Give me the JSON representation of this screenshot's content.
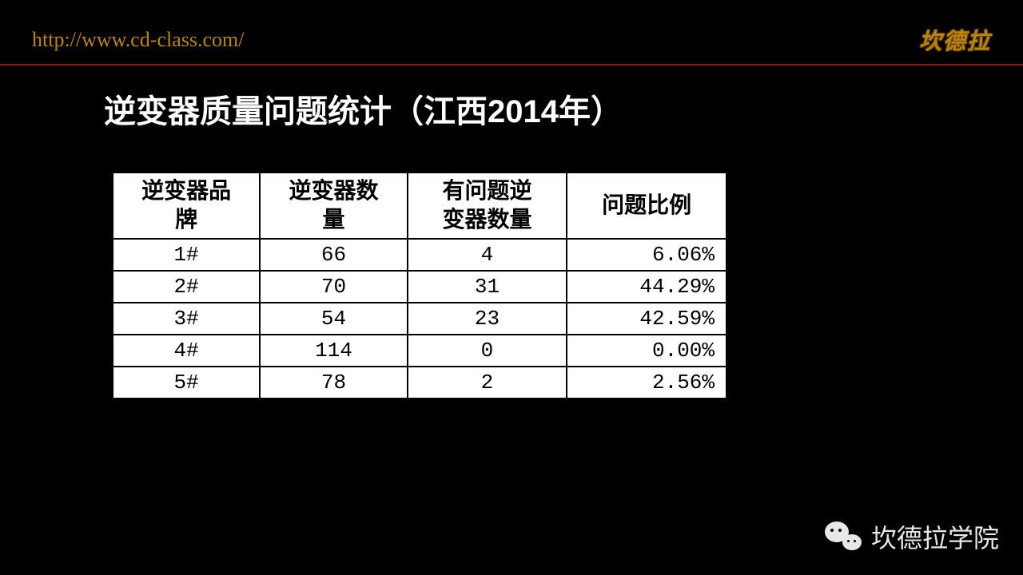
{
  "header": {
    "url": "http://www.cd-class.com/",
    "brand": "坎德拉"
  },
  "title": "逆变器质量问题统计（江西2014年）",
  "table": {
    "type": "table",
    "background_color": "#ffffff",
    "border_color": "#000000",
    "header_fontsize": 28,
    "cell_fontsize": 26,
    "columns": [
      {
        "label": "逆变器品牌",
        "width": "24%",
        "align": "center"
      },
      {
        "label": "逆变器数量",
        "width": "24%",
        "align": "center"
      },
      {
        "label": "有问题逆变器数量",
        "width": "26%",
        "align": "center"
      },
      {
        "label": "问题比例",
        "width": "26%",
        "align": "right"
      }
    ],
    "rows": [
      {
        "brand": "1#",
        "count": "66",
        "problem_count": "4",
        "ratio": "6.06%"
      },
      {
        "brand": "2#",
        "count": "70",
        "problem_count": "31",
        "ratio": "44.29%"
      },
      {
        "brand": "3#",
        "count": "54",
        "problem_count": "23",
        "ratio": "42.59%"
      },
      {
        "brand": "4#",
        "count": "114",
        "problem_count": "0",
        "ratio": "0.00%"
      },
      {
        "brand": "5#",
        "count": "78",
        "problem_count": "2",
        "ratio": "2.56%"
      }
    ]
  },
  "footer": {
    "text": "坎德拉学院"
  },
  "colors": {
    "background": "#000000",
    "url_color": "#b8860b",
    "title_color": "#ffffff",
    "divider_color": "#8b1a1a",
    "footer_text_color": "#e8e8e8"
  }
}
